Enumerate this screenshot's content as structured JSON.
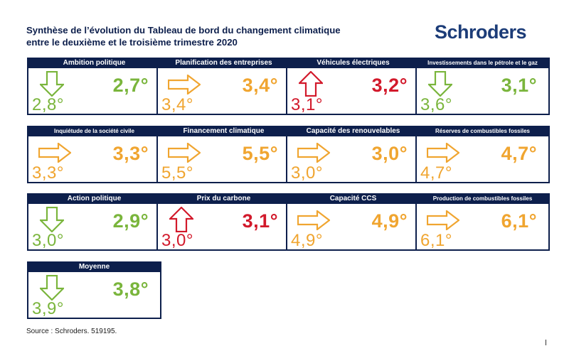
{
  "header": {
    "title_line1": "Synthèse de l’évolution du Tableau de bord du changement climatique",
    "title_line2": "entre le deuxième et le troisième trimestre 2020",
    "logo": "Schroders"
  },
  "colors": {
    "green": "#7ab53c",
    "orange": "#f0a530",
    "red": "#d2192b",
    "navy": "#0d1f4c"
  },
  "tiles": [
    {
      "title": "Ambition politique",
      "current": "2,7°",
      "previous": "2,8°",
      "direction": "down",
      "color": "green"
    },
    {
      "title": "Planification des entreprises",
      "current": "3,4°",
      "previous": "3,4°",
      "direction": "right",
      "color": "orange"
    },
    {
      "title": "Véhicules électriques",
      "current": "3,2°",
      "previous": "3,1°",
      "direction": "up",
      "color": "red"
    },
    {
      "title": "Investissements dans le pétrole et le gaz",
      "current": "3,1°",
      "previous": "3,6°",
      "direction": "down",
      "color": "green"
    },
    {
      "title": "Inquiétude de la société civile",
      "current": "3,3°",
      "previous": "3,3°",
      "direction": "right",
      "color": "orange"
    },
    {
      "title": "Financement climatique",
      "current": "5,5°",
      "previous": "5,5°",
      "direction": "right",
      "color": "orange"
    },
    {
      "title": "Capacité des renouvelables",
      "current": "3,0°",
      "previous": "3,0°",
      "direction": "right",
      "color": "orange"
    },
    {
      "title": "Réserves de combustibles fossiles",
      "current": "4,7°",
      "previous": "4,7°",
      "direction": "right",
      "color": "orange"
    },
    {
      "title": "Action politique",
      "current": "2,9°",
      "previous": "3,0°",
      "direction": "down",
      "color": "green"
    },
    {
      "title": "Prix du carbone",
      "current": "3,1°",
      "previous": "3,0°",
      "direction": "up",
      "color": "red"
    },
    {
      "title": "Capacité CCS",
      "current": "4,9°",
      "previous": "4,9°",
      "direction": "right",
      "color": "orange"
    },
    {
      "title": "Production de combustibles fossiles",
      "current": "6,1°",
      "previous": "6,1°",
      "direction": "right",
      "color": "orange"
    },
    {
      "title": "Moyenne",
      "current": "3,8°",
      "previous": "3,9°",
      "direction": "down",
      "color": "green"
    }
  ],
  "footer": {
    "source": "Source : Schroders. 519195."
  }
}
